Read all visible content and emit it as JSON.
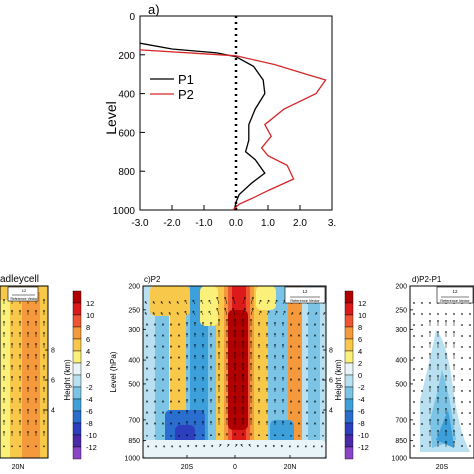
{
  "chart_data": [
    {
      "type": "line",
      "panel": "a)",
      "ylabel": "Level",
      "x_ticks": [
        "-3.0",
        "-2.0",
        "-1.0",
        "0.0",
        "1.0",
        "2.0",
        "3."
      ],
      "y_ticks": [
        "0",
        "200",
        "400",
        "600",
        "800",
        "1000"
      ],
      "xlim": [
        -3.0,
        3.0
      ],
      "ylim": [
        1000,
        0
      ],
      "zero_line": "dotted",
      "legend_placement": "center",
      "series": [
        {
          "name": "P1",
          "color": "#000000",
          "points": [
            [
              -3.0,
              140
            ],
            [
              -2.0,
              170
            ],
            [
              -0.6,
              190
            ],
            [
              0.0,
              210
            ],
            [
              0.55,
              260
            ],
            [
              0.85,
              330
            ],
            [
              0.9,
              400
            ],
            [
              0.6,
              480
            ],
            [
              0.4,
              560
            ],
            [
              0.4,
              640
            ],
            [
              0.3,
              700
            ],
            [
              0.6,
              740
            ],
            [
              0.9,
              810
            ],
            [
              0.5,
              860
            ],
            [
              0.1,
              920
            ],
            [
              0.0,
              960
            ],
            [
              -0.05,
              1000
            ]
          ]
        },
        {
          "name": "P2",
          "color": "#d62728",
          "points": [
            [
              -3.0,
              175
            ],
            [
              -1.0,
              195
            ],
            [
              0.0,
              205
            ],
            [
              1.2,
              250
            ],
            [
              2.2,
              300
            ],
            [
              2.8,
              330
            ],
            [
              2.5,
              400
            ],
            [
              1.5,
              480
            ],
            [
              0.9,
              560
            ],
            [
              1.1,
              620
            ],
            [
              0.8,
              680
            ],
            [
              1.0,
              720
            ],
            [
              1.6,
              770
            ],
            [
              1.8,
              840
            ],
            [
              1.0,
              900
            ],
            [
              0.5,
              940
            ],
            [
              0.1,
              970
            ],
            [
              -0.1,
              1000
            ]
          ]
        }
      ]
    },
    {
      "type": "heatmap",
      "panel": "adleycell",
      "x_ticks": [
        "20N"
      ],
      "y_right_label": "Height (km)",
      "y_right_ticks": [
        "4",
        "6",
        "8"
      ],
      "reference_vector": "12",
      "reference_label": "Reference Vector"
    },
    {
      "type": "heatmap",
      "panel": "c)P2",
      "ylabel": "Level (hPa)",
      "y_right_label": "Height (km)",
      "y_ticks": [
        "200",
        "250",
        "300",
        "400",
        "500",
        "700",
        "850",
        "1000"
      ],
      "y_right_ticks": [
        "4",
        "6",
        "8"
      ],
      "x_ticks": [
        "20S",
        "0",
        "20N"
      ],
      "reference_vector": "12",
      "reference_label": "Reference Vector"
    },
    {
      "type": "heatmap",
      "panel": "d)P2-P1",
      "y_ticks": [
        "200",
        "250",
        "300",
        "400",
        "500",
        "700",
        "850",
        "1000"
      ],
      "x_ticks": [
        "20S"
      ],
      "reference_vector": "12",
      "reference_label": "Reference Vector"
    }
  ],
  "colorbar": {
    "levels": [
      "12",
      "10",
      "8",
      "6",
      "4",
      "2",
      "0",
      "-2",
      "-4",
      "-6",
      "-8",
      "-10",
      "-12"
    ],
    "colors": [
      "#b00000",
      "#dd1a1a",
      "#ee5533",
      "#f59a3c",
      "#f7c84a",
      "#faf07a",
      "#e8f4f8",
      "#b8e0f0",
      "#7cc4e6",
      "#3ea0db",
      "#2a6fd0",
      "#2c3fbf",
      "#4a2aa8",
      "#8a44c8"
    ]
  },
  "colors": {
    "p1": "#000000",
    "p2": "#d62728"
  }
}
